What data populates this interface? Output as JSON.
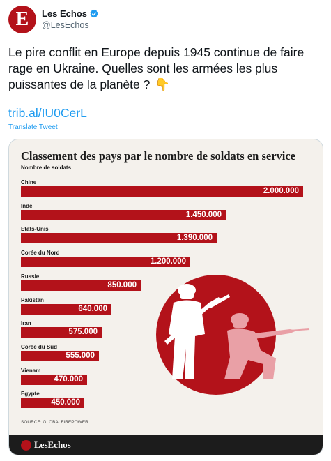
{
  "tweet": {
    "avatar_letter": "E",
    "display_name": "Les Echos",
    "verified": true,
    "handle": "@LesEchos",
    "text": "Le pire conflit en Europe depuis 1945 continue de faire rage en Ukraine. Quelles sont les armées les plus puissantes de la planète ?",
    "emoji": "👇",
    "link": "trib.al/IU0CerL",
    "translate_label": "Translate Tweet"
  },
  "infographic": {
    "title": "Classement des pays par le nombre de soldats en service",
    "subtitle": "Nombre de soldats",
    "source": "SOURCE: GLOBALFIREPOWER",
    "brand": "LesEchos",
    "bar_color": "#b3121a"
  },
  "chart_data": {
    "type": "bar",
    "orientation": "horizontal",
    "title": "Classement des pays par le nombre de soldats en service",
    "ylabel": "Nombre de soldats",
    "categories": [
      "Chine",
      "Inde",
      "Etats-Unis",
      "Corée du Nord",
      "Russie",
      "Pakistan",
      "Iran",
      "Corée du Sud",
      "Vienam",
      "Egypte"
    ],
    "values": [
      2000000,
      1450000,
      1390000,
      1200000,
      850000,
      640000,
      575000,
      555000,
      470000,
      450000
    ],
    "value_labels": [
      "2.000.000",
      "1.450.000",
      "1.390.000",
      "1.200.000",
      "850.000",
      "640.000",
      "575.000",
      "555.000",
      "470.000",
      "450.000"
    ]
  }
}
